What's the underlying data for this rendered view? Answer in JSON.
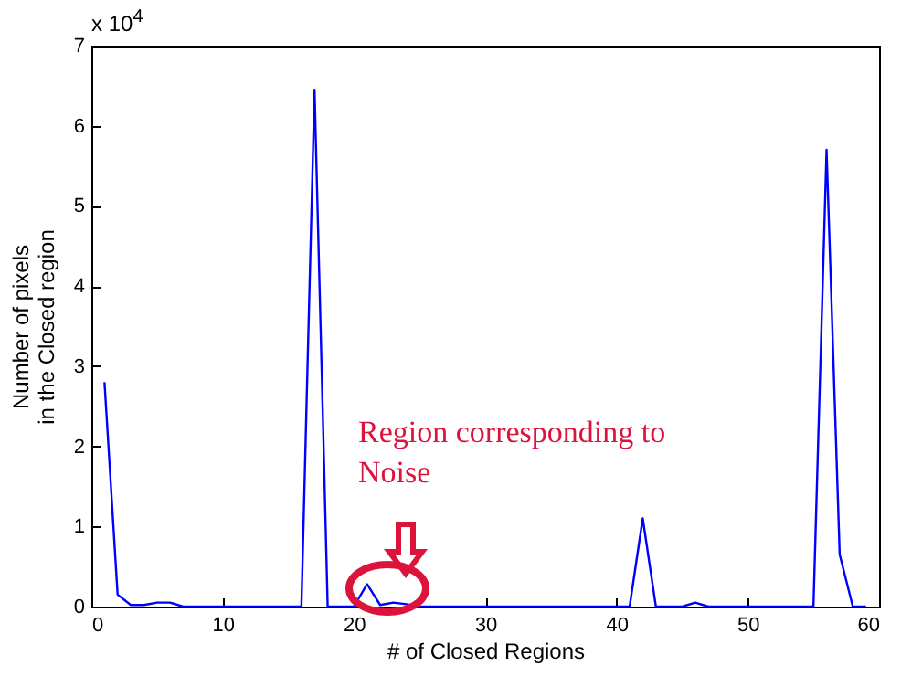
{
  "chart_data": {
    "type": "line",
    "xlabel": "# of Closed Regions",
    "ylabel": "Number of pixels\nin the Closed region",
    "x": [
      1,
      2,
      3,
      4,
      5,
      6,
      7,
      8,
      9,
      10,
      11,
      12,
      13,
      14,
      15,
      16,
      17,
      18,
      19,
      20,
      21,
      22,
      23,
      24,
      25,
      26,
      27,
      28,
      29,
      30,
      31,
      32,
      33,
      34,
      35,
      36,
      37,
      38,
      39,
      40,
      41,
      42,
      43,
      44,
      45,
      46,
      47,
      48,
      49,
      50,
      51,
      52,
      53,
      54,
      55,
      56,
      57,
      58,
      59
    ],
    "series": [
      {
        "color": "#0000ff",
        "values": [
          2.8,
          0.15,
          0.02,
          0.02,
          0.05,
          0.05,
          0,
          0,
          0,
          0,
          0,
          0,
          0,
          0,
          0,
          0,
          6.45,
          0,
          0,
          0,
          0.28,
          0.02,
          0.05,
          0.03,
          0,
          0,
          0,
          0,
          0,
          0,
          0,
          0,
          0,
          0,
          0,
          0,
          0,
          0,
          0,
          0,
          0,
          1.1,
          0,
          0,
          0,
          0.05,
          0,
          0,
          0,
          0,
          0,
          0,
          0,
          0,
          0,
          5.7,
          0.65,
          0,
          0
        ]
      }
    ],
    "xlim": [
      0,
      60
    ],
    "xticks": [
      0,
      10,
      20,
      30,
      40,
      50,
      60
    ],
    "ylim": [
      0,
      7
    ],
    "yticks": [
      0,
      1,
      2,
      3,
      4,
      5,
      6,
      7
    ],
    "grid": false,
    "marker": "none",
    "line_style": "solid",
    "annotations": [
      "x 10$^{4}$",
      "Region corresponding to\nNoise"
    ]
  }
}
